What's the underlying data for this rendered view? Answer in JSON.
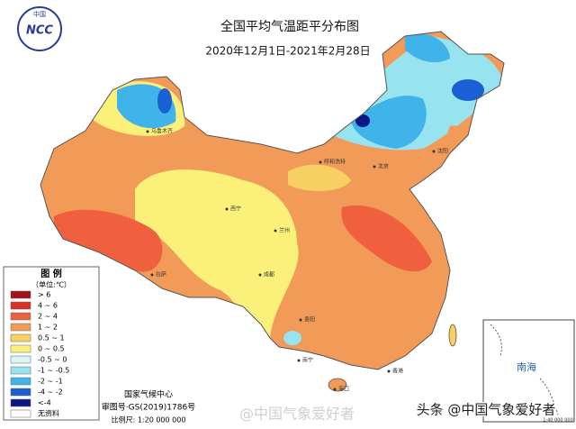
{
  "logo": {
    "top": "中国",
    "text": "NCC"
  },
  "header": {
    "title": "全国平均气温距平分布图",
    "subtitle": "2020年12月1日-2021年2月28日"
  },
  "legend": {
    "title": "图  例",
    "unit": "（单位:℃）",
    "items": [
      {
        "label": "> 6",
        "color": "#a3111a"
      },
      {
        "label": "4 ~ 6",
        "color": "#dc2f25"
      },
      {
        "label": "2 ~ 4",
        "color": "#f0603f"
      },
      {
        "label": "1 ~ 2",
        "color": "#f29a57"
      },
      {
        "label": "0.5 ~ 1",
        "color": "#f7cf63"
      },
      {
        "label": "0 ~ 0.5",
        "color": "#fbf17a"
      },
      {
        "label": "-0.5 ~ 0",
        "color": "#d9f3f6"
      },
      {
        "label": "-1 ~ -0.5",
        "color": "#97e4f0"
      },
      {
        "label": "-2 ~ -1",
        "color": "#40b3ea"
      },
      {
        "label": "-4 ~ -2",
        "color": "#1a5fd3"
      },
      {
        "label": "<-4",
        "color": "#0a1784"
      },
      {
        "label": "无资料",
        "color": "#ffffff"
      }
    ]
  },
  "cities": [
    "乌鲁木齐",
    "呼和浩特",
    "北京",
    "沈阳",
    "西宁",
    "兰州",
    "拉萨",
    "成都",
    "贵阳",
    "南宁",
    "香港",
    "海口"
  ],
  "inset": {
    "label": "南海",
    "scale": "1:40 000 000"
  },
  "footer": {
    "org": "国家气候中心",
    "approval": "审图号·GS(2019)1786号",
    "scale": "比例尺: 1:20 000 000"
  },
  "watermark": {
    "center": "@中国气象爱好者",
    "corner": "头条 @中国气象爱好者"
  }
}
